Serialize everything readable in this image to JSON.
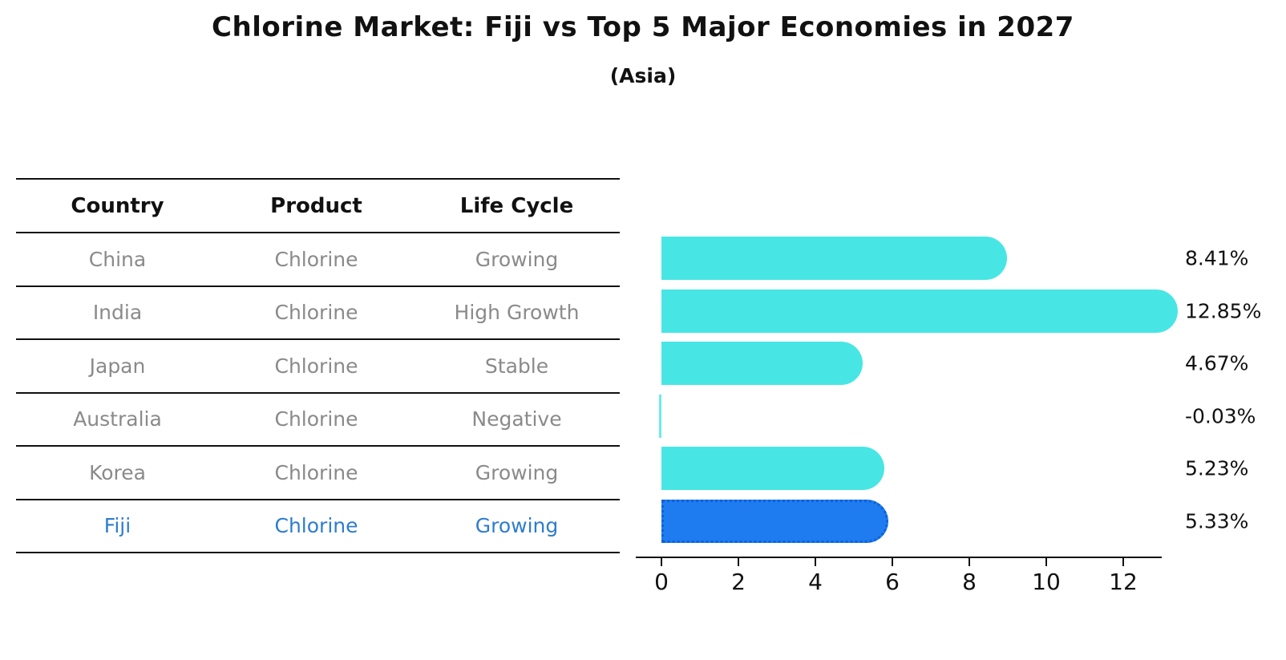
{
  "page": {
    "title": "Chlorine Market: Fiji vs Top 5 Major Economies in 2027",
    "subtitle": "(Asia)"
  },
  "table": {
    "headers": [
      "Country",
      "Product",
      "Life Cycle"
    ],
    "rows": [
      {
        "country": "China",
        "product": "Chlorine",
        "life_cycle": "Growing",
        "highlight": false
      },
      {
        "country": "India",
        "product": "Chlorine",
        "life_cycle": "High Growth",
        "highlight": false
      },
      {
        "country": "Japan",
        "product": "Chlorine",
        "life_cycle": "Stable",
        "highlight": false
      },
      {
        "country": "Australia",
        "product": "Chlorine",
        "life_cycle": "Negative",
        "highlight": false
      },
      {
        "country": "Korea",
        "product": "Chlorine",
        "life_cycle": "Growing",
        "highlight": false
      },
      {
        "country": "Fiji",
        "product": "Chlorine",
        "life_cycle": "Growing",
        "highlight": true
      }
    ]
  },
  "chart_data": {
    "type": "bar",
    "orientation": "horizontal",
    "title": "Chlorine Market: Fiji vs Top 5 Major Economies in 2027",
    "subtitle": "(Asia)",
    "categories": [
      "China",
      "India",
      "Japan",
      "Australia",
      "Korea",
      "Fiji"
    ],
    "values": [
      8.41,
      12.85,
      4.67,
      -0.03,
      5.23,
      5.33
    ],
    "value_labels": [
      "8.41%",
      "12.85%",
      "4.67%",
      "-0.03%",
      "5.23%",
      "5.33%"
    ],
    "unit": "%",
    "x_ticks": [
      0,
      2,
      4,
      6,
      8,
      10,
      12
    ],
    "xlim": [
      -0.65,
      13.05
    ],
    "grid": false,
    "legend": null,
    "highlight_index": 5
  },
  "colors": {
    "bar": "#47e6e5",
    "highlight_bar": "#1e7bf0",
    "highlight_border": "#0c62d9",
    "highlight_text": "#2e7cd0",
    "muted_text": "#8a8a8a",
    "text": "#111111",
    "axis": "#111111",
    "background": "#ffffff"
  }
}
